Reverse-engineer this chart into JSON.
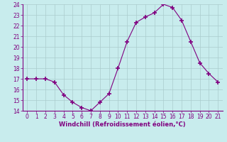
{
  "x": [
    0,
    1,
    2,
    3,
    4,
    5,
    6,
    7,
    8,
    9,
    10,
    11,
    12,
    13,
    14,
    15,
    16,
    17,
    18,
    19,
    20,
    21
  ],
  "y": [
    17.0,
    17.0,
    17.0,
    16.7,
    15.5,
    14.8,
    14.3,
    14.0,
    14.8,
    15.6,
    18.0,
    20.5,
    22.3,
    22.8,
    23.2,
    24.0,
    23.7,
    22.5,
    20.5,
    18.5,
    17.5,
    16.7
  ],
  "line_color": "#800080",
  "marker": "+",
  "marker_size": 4,
  "bg_color": "#c8eced",
  "grid_color": "#aacccc",
  "xlabel": "Windchill (Refroidissement éolien,°C)",
  "xlabel_color": "#800080",
  "tick_color": "#800080",
  "axis_color": "#800080",
  "ylim": [
    14,
    24
  ],
  "yticks": [
    14,
    15,
    16,
    17,
    18,
    19,
    20,
    21,
    22,
    23,
    24
  ],
  "xticks": [
    0,
    1,
    2,
    3,
    4,
    5,
    6,
    7,
    8,
    9,
    10,
    11,
    12,
    13,
    14,
    15,
    16,
    17,
    18,
    19,
    20,
    21
  ],
  "xlim": [
    -0.5,
    21.5
  ]
}
